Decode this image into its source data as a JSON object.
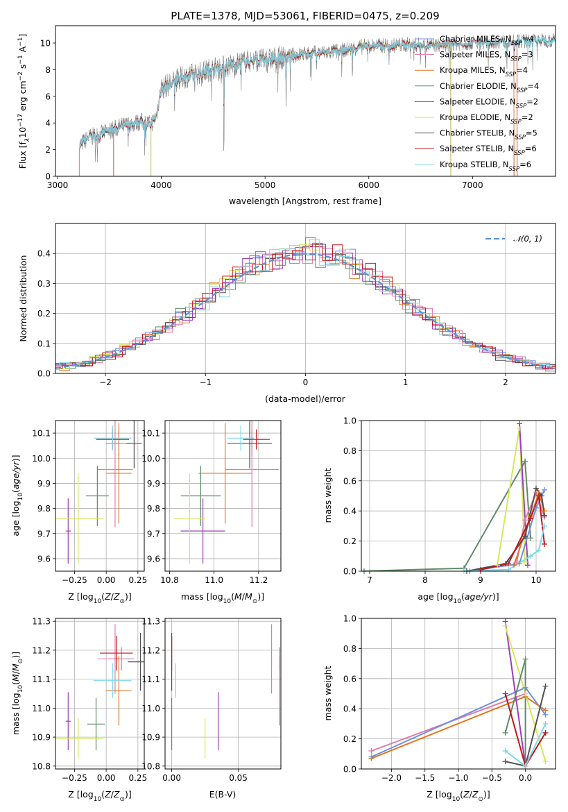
{
  "colors": {
    "Chabrier MILES": "#6f8fe0",
    "Salpeter MILES": "#e07aa8",
    "Kroupa MILES": "#e0781e",
    "Chabrier ELODIE": "#5e8a66",
    "Salpeter ELODIE": "#9b3fb5",
    "Kroupa ELODIE": "#d4e85a",
    "Chabrier STELIB": "#4f4f4f",
    "Salpeter STELIB": "#c2161b",
    "Kroupa STELIB": "#7fd8e8",
    "data": "#7f7f7f",
    "normal_curve": "#5b8fd8"
  },
  "chart_data": [
    {
      "id": "spectrum",
      "type": "line",
      "title": "PLATE=1378, MJD=53061, FIBERID=0475, z=0.209",
      "xlabel": "wavelength [Angstrom, rest frame]",
      "ylabel": "Flux [f_λ10^-17 erg cm^-2 s^-1 A^-1]",
      "xlim": [
        2980,
        7800
      ],
      "ylim": [
        0,
        11.3
      ],
      "xticks": [
        3000,
        4000,
        5000,
        6000,
        7000
      ],
      "yticks": [
        0,
        2,
        4,
        6,
        8,
        10
      ],
      "legend_position": "top-right",
      "legend": [
        {
          "model": "Chabrier MILES",
          "n": "4"
        },
        {
          "model": "Salpeter MILES",
          "n": "3"
        },
        {
          "model": "Kroupa MILES",
          "n": "4"
        },
        {
          "model": "Chabrier ELODIE",
          "n": "4"
        },
        {
          "model": "Salpeter ELODIE",
          "n": "2"
        },
        {
          "model": "Kroupa ELODIE",
          "n": "2"
        },
        {
          "model": "Chabrier STELIB",
          "n": "5"
        },
        {
          "model": "Salpeter STELIB",
          "n": "6"
        },
        {
          "model": "Kroupa STELIB",
          "n": "6"
        }
      ],
      "n_prefix": "N",
      "n_sub": "SSP",
      "spectrum_anchors": {
        "wavelength": [
          3210,
          3300,
          3400,
          3500,
          3600,
          3700,
          3800,
          3900,
          3950,
          4000,
          4100,
          4200,
          4300,
          4400,
          4500,
          4600,
          4700,
          4800,
          4900,
          5000,
          5200,
          5400,
          5600,
          5800,
          6000,
          6200,
          6400,
          6600,
          6800,
          7000,
          7200,
          7400,
          7600
        ],
        "flux": [
          2.3,
          2.9,
          3.1,
          3.4,
          3.7,
          3.9,
          4.1,
          3.9,
          4.5,
          6.6,
          7.0,
          7.4,
          7.6,
          7.8,
          8.1,
          8.2,
          8.4,
          8.6,
          8.7,
          8.7,
          9.0,
          9.2,
          9.3,
          9.5,
          9.8,
          9.8,
          9.9,
          9.8,
          9.9,
          10.0,
          10.1,
          10.1,
          10.2
        ]
      },
      "model_starts": {
        "Salpeter MILES": 3540,
        "Kroupa MILES": 3540,
        "Chabrier MILES": 3540,
        "Kroupa ELODIE": 3900,
        "Salpeter ELODIE": 3900,
        "Chabrier ELODIE": 3900,
        "Kroupa STELIB": 3210,
        "Salpeter STELIB": 3210,
        "Chabrier STELIB": 3210
      },
      "model_ends": {
        "Salpeter MILES": 7400,
        "Kroupa MILES": 7400,
        "Chabrier MILES": 7400,
        "Kroupa ELODIE": 6790,
        "Salpeter ELODIE": 6790,
        "Chabrier ELODIE": 6790,
        "Kroupa STELIB": 7800,
        "Salpeter STELIB": 7430,
        "Chabrier STELIB": 7800
      }
    },
    {
      "id": "residuals",
      "type": "histogram",
      "xlabel": "(data-model)/error",
      "ylabel": "Normed distribution",
      "xlim": [
        -2.5,
        2.5
      ],
      "ylim": [
        0,
        0.5
      ],
      "xticks": [
        -2,
        -1,
        0,
        1,
        2
      ],
      "yticks": [
        0.0,
        0.1,
        0.2,
        0.3,
        0.4
      ],
      "legend_position": "top-right",
      "legend_label": "𝒩(0, 1)",
      "normal_mean": 0,
      "normal_sigma": 1,
      "bin_width": 0.1
    },
    {
      "id": "age_vs_Z",
      "type": "errorbar",
      "xlabel": "Z [log10(Z/Z⊙)]",
      "ylabel": "age  [log10(age/yr)]",
      "xlim": [
        -0.4,
        0.3
      ],
      "ylim": [
        9.55,
        10.15
      ],
      "xticks": [
        -0.25,
        0.0,
        0.25
      ],
      "yticks": [
        9.6,
        9.7,
        9.8,
        9.9,
        10.0,
        10.1
      ],
      "points": [
        {
          "model": "Chabrier MILES",
          "x": 0.1,
          "xerr": 0.1,
          "y": 10.06,
          "yerr": 0.05
        },
        {
          "model": "Salpeter MILES",
          "x": 0.07,
          "xerr": 0.14,
          "y": 9.955,
          "yerr": 0.23
        },
        {
          "model": "Kroupa MILES",
          "x": 0.1,
          "xerr": 0.1,
          "y": 9.94,
          "yerr": 0.2
        },
        {
          "model": "Chabrier ELODIE",
          "x": -0.07,
          "xerr": 0.09,
          "y": 9.85,
          "yerr": 0.12
        },
        {
          "model": "Salpeter ELODIE",
          "x": -0.3,
          "xerr": 0.02,
          "y": 9.71,
          "yerr": 0.13
        },
        {
          "model": "Kroupa ELODIE",
          "x": -0.22,
          "xerr": 0.2,
          "y": 9.76,
          "yerr": 0.18
        },
        {
          "model": "Chabrier STELIB",
          "x": 0.22,
          "xerr": 0.06,
          "y": 10.06,
          "yerr": 0.1
        },
        {
          "model": "Salpeter STELIB",
          "x": 0.05,
          "xerr": 0.13,
          "y": 10.075,
          "yerr": 0.04
        },
        {
          "model": "Kroupa STELIB",
          "x": 0.05,
          "xerr": 0.15,
          "y": 10.08,
          "yerr": 0.05
        }
      ]
    },
    {
      "id": "age_vs_mass",
      "type": "errorbar",
      "xlabel": "mass [log10(M/M⊙)]",
      "ylabel": "",
      "xlim": [
        10.78,
        11.3
      ],
      "ylim": [
        9.55,
        10.15
      ],
      "xticks": [
        10.8,
        11.0,
        11.2
      ],
      "yticks": [
        9.6,
        9.7,
        9.8,
        9.9,
        10.0,
        10.1
      ],
      "points": [
        {
          "model": "Chabrier MILES",
          "x": 11.17,
          "xerr": 0.04,
          "y": 10.06,
          "yerr": 0.05
        },
        {
          "model": "Salpeter MILES",
          "x": 11.17,
          "xerr": 0.12,
          "y": 9.955,
          "yerr": 0.23
        },
        {
          "model": "Kroupa MILES",
          "x": 11.05,
          "xerr": 0.12,
          "y": 9.94,
          "yerr": 0.2
        },
        {
          "model": "Chabrier ELODIE",
          "x": 10.94,
          "xerr": 0.09,
          "y": 9.85,
          "yerr": 0.12
        },
        {
          "model": "Salpeter ELODIE",
          "x": 10.95,
          "xerr": 0.1,
          "y": 9.71,
          "yerr": 0.13
        },
        {
          "model": "Kroupa ELODIE",
          "x": 10.89,
          "xerr": 0.07,
          "y": 9.76,
          "yerr": 0.18
        },
        {
          "model": "Chabrier STELIB",
          "x": 11.16,
          "xerr": 0.1,
          "y": 10.06,
          "yerr": 0.1
        },
        {
          "model": "Salpeter STELIB",
          "x": 11.19,
          "xerr": 0.06,
          "y": 10.075,
          "yerr": 0.04
        },
        {
          "model": "Kroupa STELIB",
          "x": 11.12,
          "xerr": 0.06,
          "y": 10.08,
          "yerr": 0.05
        }
      ]
    },
    {
      "id": "weight_vs_age",
      "type": "line",
      "xlabel": "age  [log10(age/yr)]",
      "ylabel": "mass weight",
      "xlim": [
        6.85,
        10.35
      ],
      "ylim": [
        0,
        1
      ],
      "xticks": [
        7,
        8,
        9,
        10
      ],
      "yticks": [
        0.0,
        0.2,
        0.4,
        0.6,
        0.8,
        1.0
      ],
      "series": [
        {
          "model": "Chabrier ELODIE",
          "x": [
            6.9,
            8.7,
            9.8,
            9.9
          ],
          "y": [
            0.0,
            0.02,
            0.73,
            0.22
          ]
        },
        {
          "model": "Kroupa ELODIE",
          "x": [
            9.3,
            9.7,
            9.8
          ],
          "y": [
            0.04,
            0.95,
            0.06
          ]
        },
        {
          "model": "Salpeter ELODIE",
          "x": [
            9.7,
            9.85
          ],
          "y": [
            0.98,
            0.04
          ]
        },
        {
          "model": "Chabrier MILES",
          "x": [
            8.8,
            9.7,
            10.0,
            10.15
          ],
          "y": [
            0.0,
            0.05,
            0.42,
            0.54
          ]
        },
        {
          "model": "Salpeter MILES",
          "x": [
            9.65,
            9.8,
            10.0,
            10.15
          ],
          "y": [
            0.06,
            0.34,
            0.52,
            0.36
          ]
        },
        {
          "model": "Kroupa MILES",
          "x": [
            9.6,
            9.9,
            10.05,
            10.15
          ],
          "y": [
            0.04,
            0.36,
            0.52,
            0.4
          ]
        },
        {
          "model": "Chabrier STELIB",
          "x": [
            8.75,
            9.45,
            9.8,
            10.0,
            10.1,
            10.15
          ],
          "y": [
            0.0,
            0.05,
            0.23,
            0.55,
            0.5,
            0.37
          ]
        },
        {
          "model": "Salpeter STELIB",
          "x": [
            9.0,
            9.5,
            9.9,
            10.05,
            10.15
          ],
          "y": [
            0.01,
            0.05,
            0.35,
            0.5,
            0.18
          ]
        },
        {
          "model": "Kroupa STELIB",
          "x": [
            8.7,
            9.5,
            9.9,
            10.05,
            10.15
          ],
          "y": [
            0.0,
            0.01,
            0.1,
            0.14,
            0.3
          ]
        }
      ]
    },
    {
      "id": "mass_vs_Z",
      "type": "errorbar",
      "xlabel": "Z [log10(Z/Z⊙)]",
      "ylabel": "mass [log10(M/M⊙)]",
      "xlim": [
        -0.4,
        0.3
      ],
      "ylim": [
        10.79,
        11.31
      ],
      "xticks": [
        -0.25,
        0.0,
        0.25
      ],
      "yticks": [
        10.8,
        10.9,
        11.0,
        11.1,
        11.2,
        11.3
      ],
      "points": [
        {
          "model": "Chabrier MILES",
          "x": 0.12,
          "xerr": 0.1,
          "y": 11.17,
          "yerr": 0.04
        },
        {
          "model": "Salpeter MILES",
          "x": 0.07,
          "xerr": 0.14,
          "y": 11.17,
          "yerr": 0.12
        },
        {
          "model": "Kroupa MILES",
          "x": 0.1,
          "xerr": 0.1,
          "y": 11.06,
          "yerr": 0.12
        },
        {
          "model": "Chabrier ELODIE",
          "x": -0.08,
          "xerr": 0.07,
          "y": 10.945,
          "yerr": 0.09
        },
        {
          "model": "Salpeter ELODIE",
          "x": -0.3,
          "xerr": 0.02,
          "y": 10.955,
          "yerr": 0.1
        },
        {
          "model": "Kroupa ELODIE",
          "x": -0.22,
          "xerr": 0.2,
          "y": 10.895,
          "yerr": 0.07
        },
        {
          "model": "Chabrier STELIB",
          "x": 0.27,
          "xerr": 0.1,
          "y": 11.16,
          "yerr": 0.1
        },
        {
          "model": "Salpeter STELIB",
          "x": 0.08,
          "xerr": 0.13,
          "y": 11.19,
          "yerr": 0.06
        },
        {
          "model": "Kroupa STELIB",
          "x": 0.05,
          "xerr": 0.15,
          "y": 11.095,
          "yerr": 0.06
        }
      ]
    },
    {
      "id": "mass_vs_ebv",
      "type": "errorbar",
      "xlabel": "E(B-V)",
      "ylabel": "",
      "xlim": [
        -0.005,
        0.082
      ],
      "ylim": [
        10.79,
        11.31
      ],
      "xticks": [
        0.0,
        0.05
      ],
      "yticks": [
        10.8,
        10.9,
        11.0,
        11.1,
        11.2,
        11.3
      ],
      "points": [
        {
          "model": "Chabrier MILES",
          "x": 0.081,
          "xerr": 0,
          "y": 11.17,
          "yerr": 0.04
        },
        {
          "model": "Salpeter MILES",
          "x": 0.075,
          "xerr": 0,
          "y": 11.17,
          "yerr": 0.12
        },
        {
          "model": "Kroupa MILES",
          "x": 0.081,
          "xerr": 0,
          "y": 11.06,
          "yerr": 0.12
        },
        {
          "model": "Chabrier ELODIE",
          "x": 0.0,
          "xerr": 0,
          "y": 10.945,
          "yerr": 0.09
        },
        {
          "model": "Salpeter ELODIE",
          "x": 0.035,
          "xerr": 0,
          "y": 10.955,
          "yerr": 0.1
        },
        {
          "model": "Kroupa ELODIE",
          "x": 0.025,
          "xerr": 0,
          "y": 10.895,
          "yerr": 0.07
        },
        {
          "model": "Chabrier STELIB",
          "x": 0.0,
          "xerr": 0,
          "y": 11.16,
          "yerr": 0.1
        },
        {
          "model": "Salpeter STELIB",
          "x": 0.0,
          "xerr": 0,
          "y": 11.19,
          "yerr": 0.06
        },
        {
          "model": "Kroupa STELIB",
          "x": 0.003,
          "xerr": 0,
          "y": 11.095,
          "yerr": 0.06
        }
      ]
    },
    {
      "id": "weight_vs_Z",
      "type": "line",
      "xlabel": "Z [log10(Z/Z⊙)]",
      "ylabel": "mass weight",
      "xlim": [
        -2.45,
        0.45
      ],
      "ylim": [
        0,
        1
      ],
      "xticks": [
        -2.0,
        -1.5,
        -1.0,
        -0.5,
        0.0
      ],
      "yticks": [
        0.0,
        0.2,
        0.4,
        0.6,
        0.8,
        1.0
      ],
      "series": [
        {
          "model": "Salpeter MILES",
          "x": [
            -2.3,
            0.0
          ],
          "y": [
            0.12,
            0.5
          ]
        },
        {
          "model": "Chabrier MILES",
          "x": [
            -2.3,
            0.0,
            0.3
          ],
          "y": [
            0.08,
            0.54,
            0.36
          ]
        },
        {
          "model": "Kroupa MILES",
          "x": [
            -2.3,
            0.0,
            0.3
          ],
          "y": [
            0.07,
            0.48,
            0.39
          ]
        },
        {
          "model": "Salpeter ELODIE",
          "x": [
            -0.3,
            0.0
          ],
          "y": [
            0.98,
            0.02
          ]
        },
        {
          "model": "Kroupa ELODIE",
          "x": [
            -0.3,
            0.0,
            0.3
          ],
          "y": [
            0.95,
            0.5,
            0.05
          ]
        },
        {
          "model": "Chabrier ELODIE",
          "x": [
            -0.3,
            0.0,
            0.0
          ],
          "y": [
            0.24,
            0.73,
            0.02
          ]
        },
        {
          "model": "Chabrier STELIB",
          "x": [
            -0.3,
            0.0,
            0.3
          ],
          "y": [
            0.05,
            0.02,
            0.55
          ]
        },
        {
          "model": "Salpeter STELIB",
          "x": [
            -0.3,
            0.0,
            0.3
          ],
          "y": [
            0.5,
            0.02,
            0.24
          ]
        },
        {
          "model": "Kroupa STELIB",
          "x": [
            -0.3,
            0.0,
            0.3
          ],
          "y": [
            0.12,
            0.02,
            0.3
          ]
        }
      ]
    }
  ]
}
